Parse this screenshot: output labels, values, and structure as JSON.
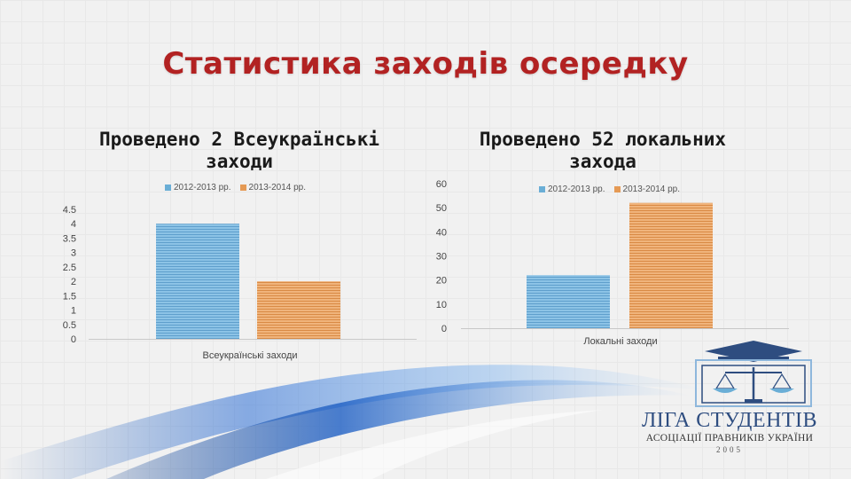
{
  "slide": {
    "title": "Статистика заходів осередку",
    "left_subtitle": [
      "Проведено 2 Всеукраїнські",
      "заходи"
    ],
    "right_subtitle": [
      "Проведено 52 локальних",
      "захода"
    ]
  },
  "colors": {
    "series_2012": "#6aaed6",
    "series_2013": "#e59a55",
    "title": "#b22222"
  },
  "chart_data": [
    {
      "type": "bar",
      "categories": [
        "Всеукраїнські заходи"
      ],
      "series": [
        {
          "name": "2012-2013 рр.",
          "values": [
            4
          ]
        },
        {
          "name": "2013-2014 рр.",
          "values": [
            2
          ]
        }
      ],
      "title": "Проведено 2 Всеукраїнські заходи",
      "yticks": [
        "0",
        "0.5",
        "1",
        "1.5",
        "2",
        "2.5",
        "3",
        "3.5",
        "4",
        "4.5"
      ],
      "ylim": [
        0,
        4.5
      ],
      "legend": "top",
      "grid": false
    },
    {
      "type": "bar",
      "categories": [
        "Локальні заходи"
      ],
      "series": [
        {
          "name": "2012-2013 рр.",
          "values": [
            22
          ]
        },
        {
          "name": "2013-2014 рр.",
          "values": [
            52
          ]
        }
      ],
      "title": "Проведено 52 локальних захода",
      "yticks": [
        "0",
        "10",
        "20",
        "30",
        "40",
        "50",
        "60"
      ],
      "ylim": [
        0,
        60
      ],
      "legend": "top",
      "grid": false
    }
  ],
  "logo": {
    "line1": "ЛІГА СТУДЕНТІВ",
    "line2": "АСОЦІАЦІЇ ПРАВНИКІВ УКРАЇНИ",
    "year": "2005",
    "icon": "scales-of-justice-icon"
  }
}
